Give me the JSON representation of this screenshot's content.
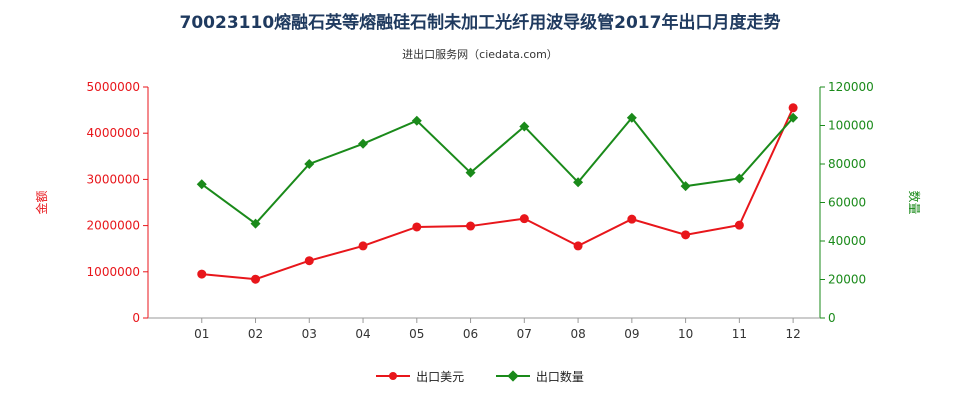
{
  "chart_data": {
    "type": "line",
    "title": "70023110熔融石英等熔融硅石制未加工光纤用波导级管2017年出口月度走势",
    "subtitle": "进出口服务网（ciedata.com）",
    "categories": [
      "01",
      "02",
      "03",
      "04",
      "05",
      "06",
      "07",
      "08",
      "09",
      "10",
      "11",
      "12"
    ],
    "y_left": {
      "label": "金额",
      "range": [
        0,
        5000000
      ],
      "ticks": [
        "0",
        "1000000",
        "2000000",
        "3000000",
        "4000000",
        "5000000"
      ]
    },
    "y_right": {
      "label": "数量",
      "range": [
        0,
        120000
      ],
      "ticks": [
        "0",
        "20000",
        "40000",
        "60000",
        "80000",
        "100000",
        "120000"
      ]
    },
    "series": [
      {
        "name": "出口美元",
        "axis": "left",
        "color": "#e8161b",
        "marker": "circle",
        "values": [
          950000,
          840000,
          1240000,
          1560000,
          1970000,
          1990000,
          2150000,
          1560000,
          2140000,
          1800000,
          2010000,
          4550000
        ]
      },
      {
        "name": "出口数量",
        "axis": "right",
        "color": "#1a8a1a",
        "marker": "diamond",
        "values": [
          69500,
          49000,
          80000,
          90500,
          102500,
          75500,
          99500,
          70500,
          104000,
          68500,
          72500,
          104000
        ]
      }
    ],
    "left_axis_color": "#e8161b",
    "right_axis_color": "#1a8a1a",
    "grid": false,
    "legend_position": "bottom-center"
  }
}
